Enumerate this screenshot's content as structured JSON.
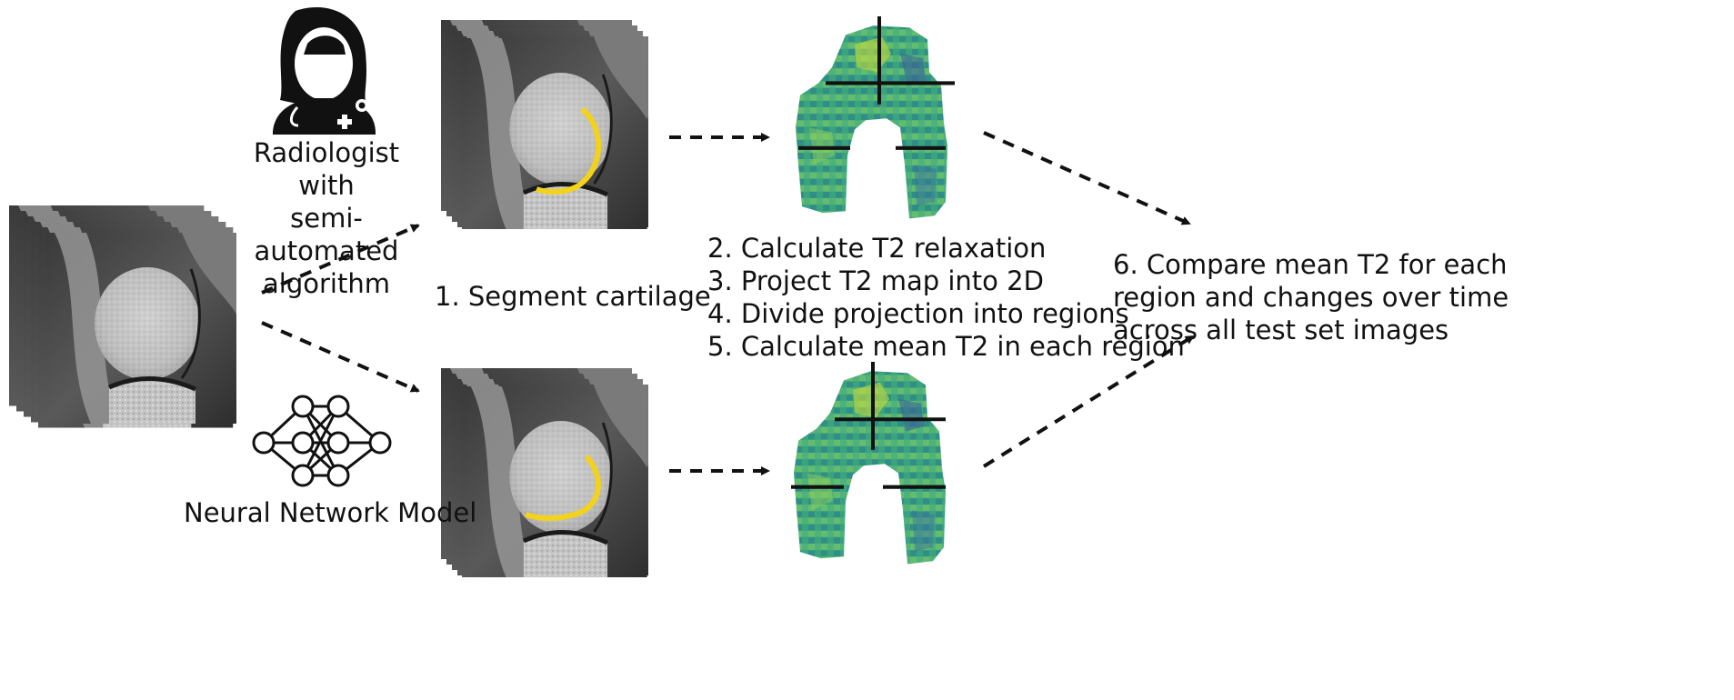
{
  "radiologist": {
    "lines": [
      "Radiologist with",
      "semi-automated",
      "algorithm"
    ]
  },
  "neural_network": {
    "label": "Neural Network Model"
  },
  "step1": {
    "label": "1. Segment cartilage"
  },
  "steps_middle": [
    "2. Calculate T2 relaxation",
    "3. Project T2 map into 2D",
    "4. Divide projection into regions",
    "5. Calculate mean T2 in each region"
  ],
  "step6": {
    "lines": [
      "6. Compare mean T2 for each",
      "region and changes over time",
      "across all test set images"
    ]
  },
  "colors": {
    "segmentation": "#f2d21b",
    "t2_map_base": "#3aa37e",
    "t2_map_high": "#c8dc3a",
    "t2_map_low": "#3b5c9a",
    "arrow": "#111111",
    "icon": "#111111"
  },
  "icons": [
    "doctor-icon",
    "neural-network-icon"
  ]
}
